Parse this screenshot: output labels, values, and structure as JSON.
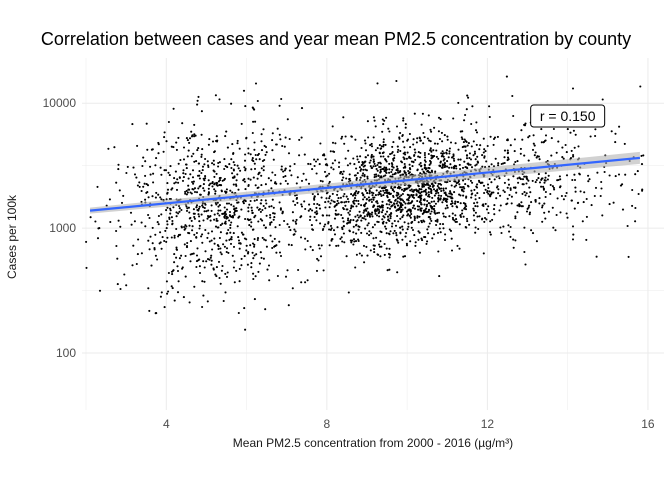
{
  "chart_data": {
    "type": "scatter",
    "title": "Correlation between cases and year mean PM2.5 concentration by county",
    "xlabel": "Mean PM2.5 concentration from 2000 - 2016 (µg/m³)",
    "ylabel": "Cases per 100k",
    "x_ticks": [
      4,
      8,
      12,
      16
    ],
    "y_ticks": [
      100,
      1000,
      10000
    ],
    "y_scale": "log10",
    "xlim": [
      1.9,
      16.4
    ],
    "ylim": [
      35,
      23000
    ],
    "grid": true,
    "legend": "none",
    "annotation": {
      "text": "r = 0.150",
      "x": 14.0,
      "y": 7900
    },
    "trend_line": {
      "x": [
        2.1,
        15.8
      ],
      "y": [
        1380,
        3650
      ]
    },
    "point_count": 2900,
    "colors": {
      "points": "#000000",
      "trend": "#3366ff",
      "ribbon": "#b3b3b3",
      "grid": "#ebebeb"
    }
  }
}
